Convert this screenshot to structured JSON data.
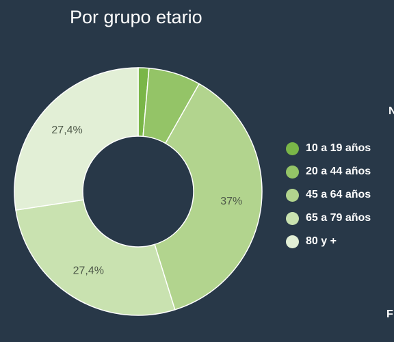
{
  "chart_data": {
    "type": "pie",
    "title": "Por grupo etario",
    "donut": true,
    "categories": [
      "10 a 19 años",
      "20 a 44 años",
      "45 a 64 años",
      "65 a 79 años",
      "80 y +"
    ],
    "values": [
      1.4,
      6.8,
      37,
      27.4,
      27.4
    ],
    "data_labels": [
      "",
      "",
      "37%",
      "27,4%",
      "27,4%"
    ],
    "colors": [
      "#7ab648",
      "#94c467",
      "#b2d48e",
      "#c9e2b0",
      "#e2efd6"
    ],
    "legend_position": "right"
  },
  "edge_text": {
    "top_right": "N",
    "bottom_right": "F"
  }
}
